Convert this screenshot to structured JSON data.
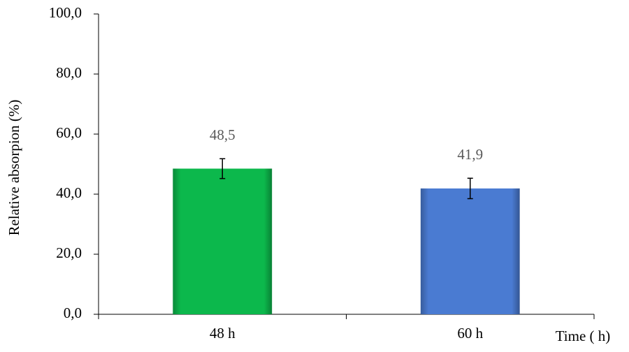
{
  "chart_data": {
    "type": "bar",
    "y_label": "Relative absorpion (%)",
    "x_label": "Time ( h)",
    "categories": [
      "48 h",
      "60 h"
    ],
    "values": [
      48.5,
      41.9
    ],
    "value_labels": [
      "48,5",
      "41,9"
    ],
    "errors": [
      3.3,
      3.4
    ],
    "colors": [
      "#0cb84c",
      "#4a7bd2"
    ],
    "ylim": [
      0,
      100
    ],
    "yticks": [
      {
        "value": 0,
        "label": "0,0"
      },
      {
        "value": 20,
        "label": "20,0"
      },
      {
        "value": 40,
        "label": "40,0"
      },
      {
        "value": 60,
        "label": "60,0"
      },
      {
        "value": 80,
        "label": "80,0"
      },
      {
        "value": 100,
        "label": "100,0"
      }
    ],
    "grid": false
  }
}
